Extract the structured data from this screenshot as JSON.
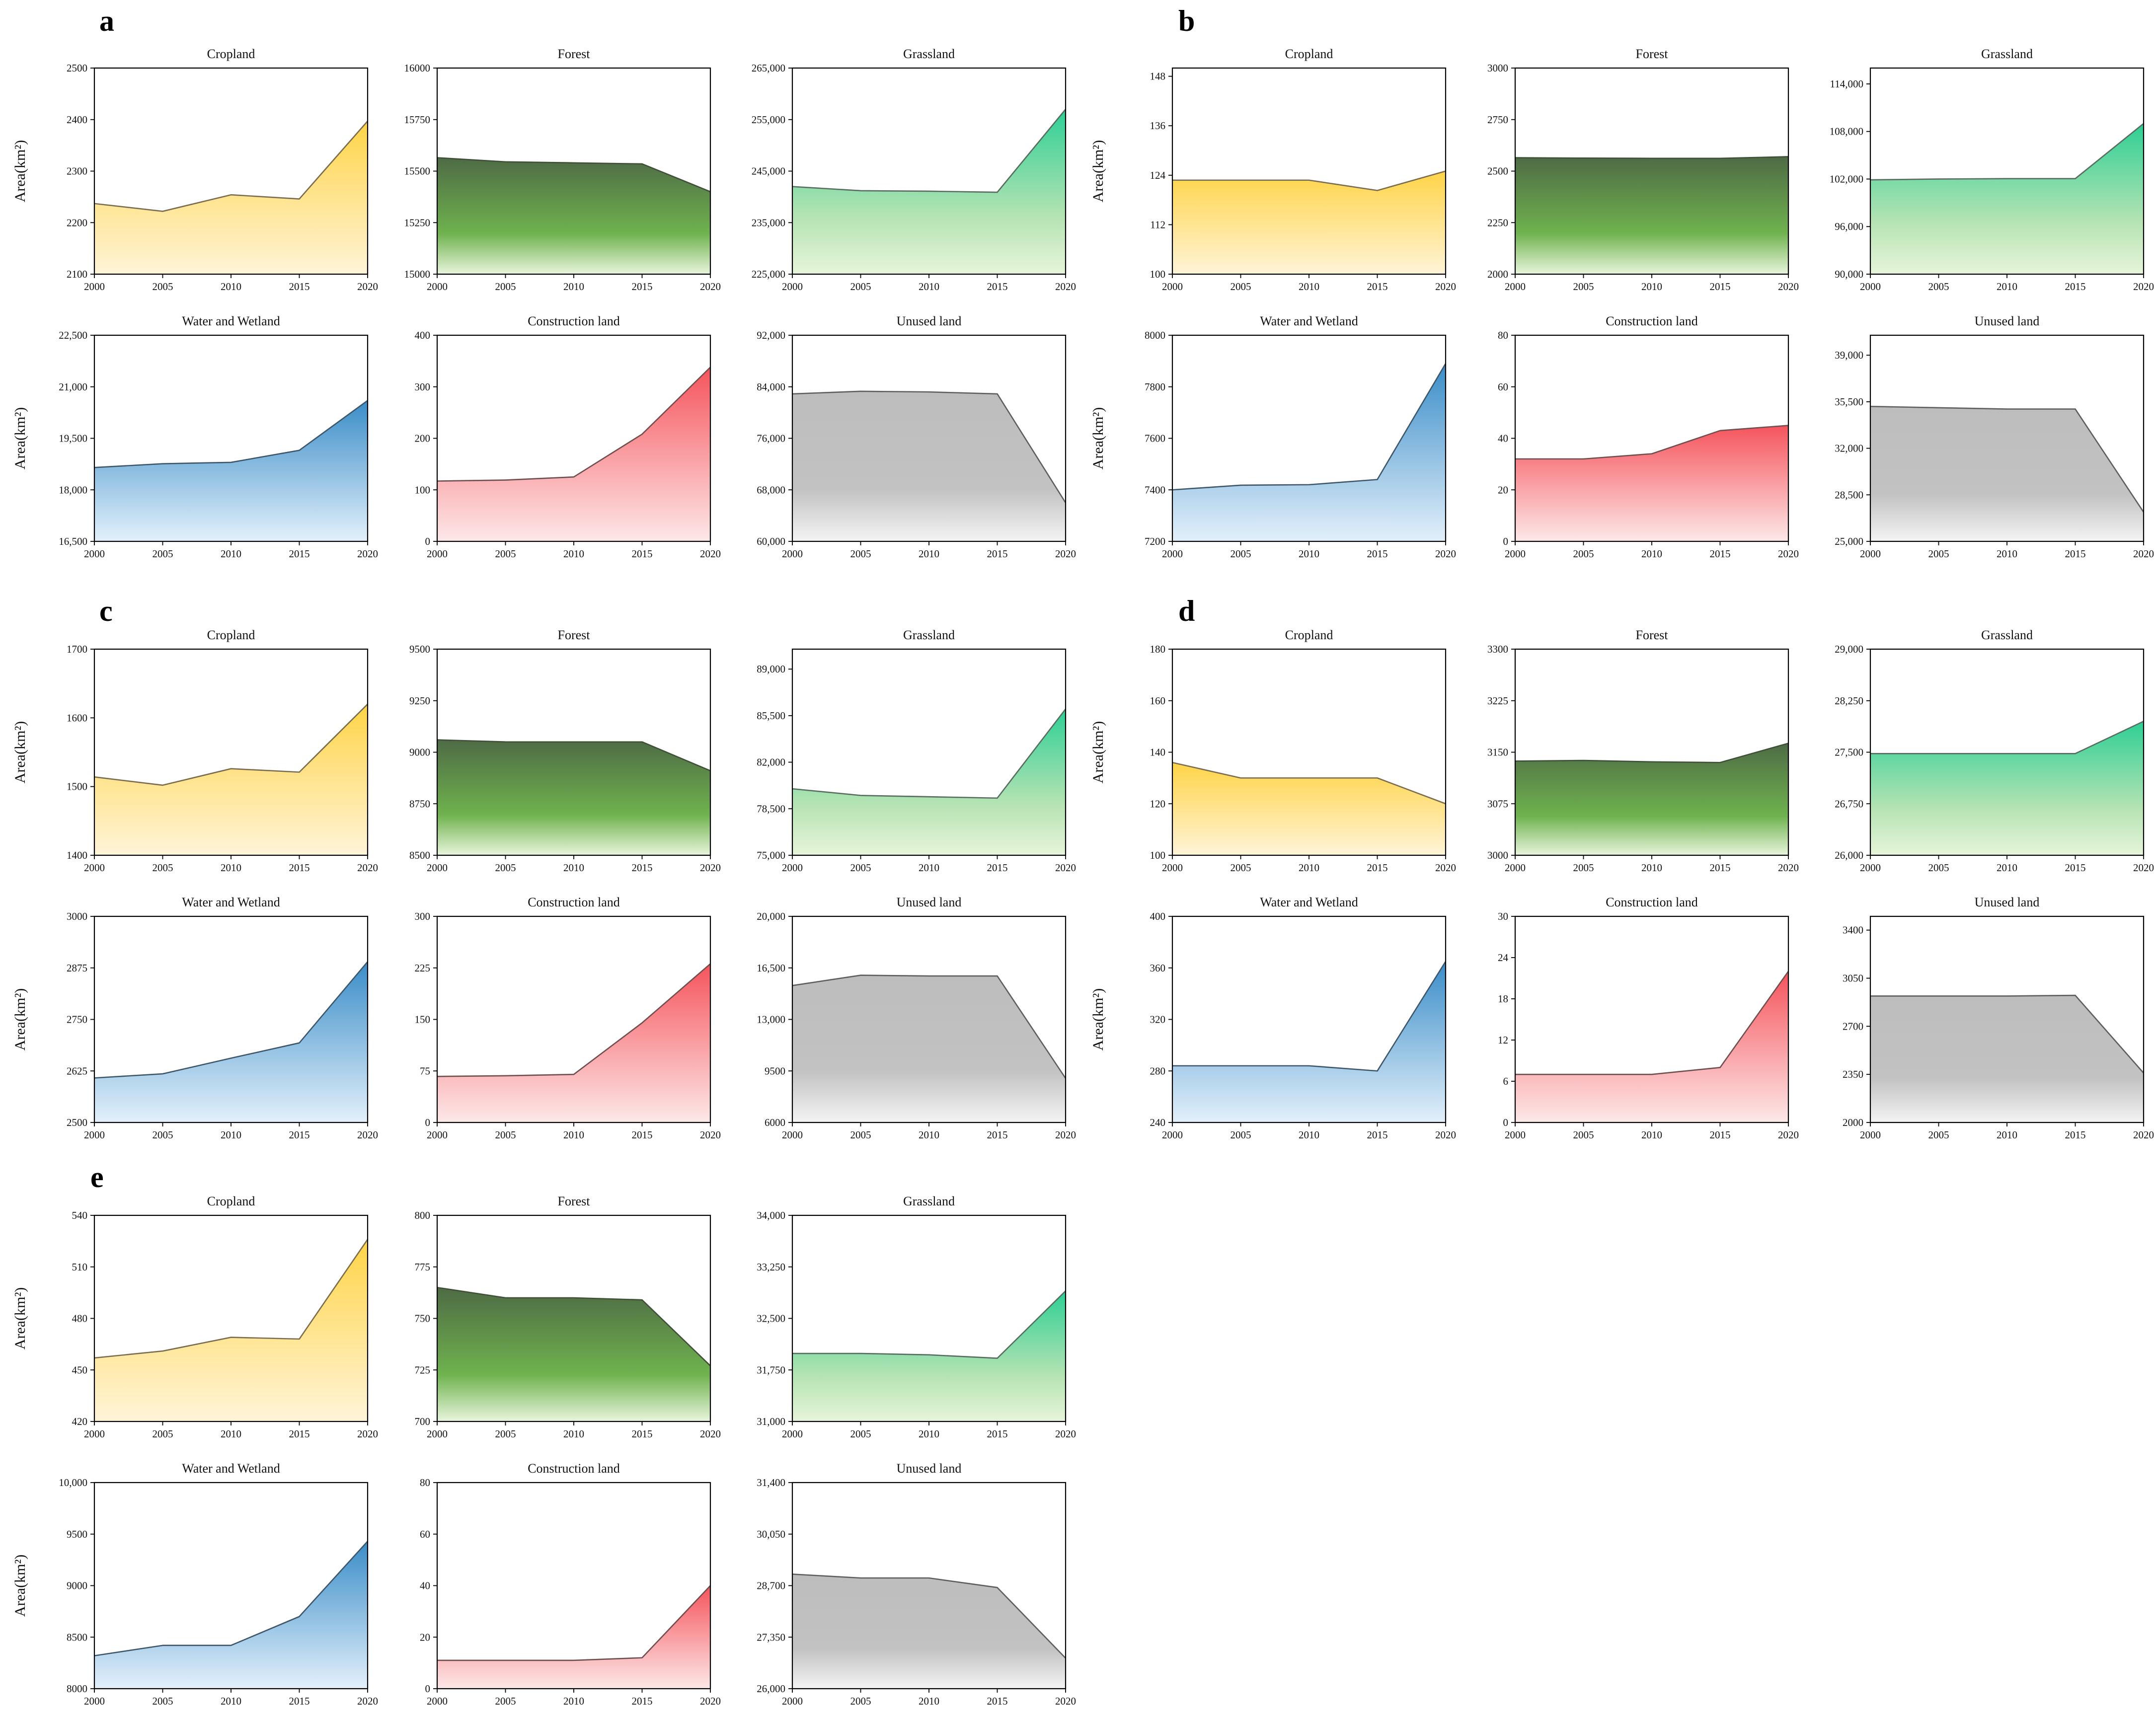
{
  "panel_letters": [
    "a",
    "b",
    "c",
    "d",
    "e"
  ],
  "colors": {
    "Cropland": {
      "top": "#ffd447",
      "bottom": "#fff4d8",
      "line": "#7a6c50"
    },
    "Forest": {
      "top": "#4e6b45",
      "bottom": "#e8f5dc",
      "mid": "#6fb24e",
      "line": "#3f4f38"
    },
    "Grassland": {
      "top": "#2ecf95",
      "bottom": "#e7f5da",
      "mid": "#b5e3b3",
      "line": "#5a6b60"
    },
    "Water and Wetland": {
      "top": "#3a8dc8",
      "bottom": "#e3f0fb",
      "line": "#3e5668"
    },
    "Construction land": {
      "top": "#f5545c",
      "bottom": "#fde8e8",
      "line": "#6e4f50"
    },
    "Unused land": {
      "top": "#bdbdbd",
      "bottom": "#f4f4f4",
      "mid": "#c2c2c2",
      "line": "#5e5e5e"
    }
  },
  "chart_data": [
    {
      "panel": "a",
      "type": "area",
      "title": "Cropland",
      "ylabel": "Area(km²)",
      "x": [
        2000,
        2005,
        2010,
        2015,
        2020
      ],
      "values": [
        2237,
        2222,
        2254,
        2246,
        2397
      ],
      "ylim": [
        2100,
        2500
      ],
      "yticks": [
        "2100",
        "2200",
        "2300",
        "2400",
        "2500"
      ]
    },
    {
      "panel": "a",
      "type": "area",
      "title": "Forest",
      "ylabel": "",
      "x": [
        2000,
        2005,
        2010,
        2015,
        2020
      ],
      "values": [
        15565,
        15545,
        15540,
        15535,
        15400
      ],
      "ylim": [
        15000,
        16000
      ],
      "yticks": [
        "15000",
        "15250",
        "15500",
        "15750",
        "16000"
      ]
    },
    {
      "panel": "a",
      "type": "area",
      "title": "Grassland",
      "ylabel": "",
      "x": [
        2000,
        2005,
        2010,
        2015,
        2020
      ],
      "values": [
        242000,
        241200,
        241100,
        240900,
        257000
      ],
      "ylim": [
        225000,
        265000
      ],
      "yticks": [
        "225,000",
        "235,000",
        "245,000",
        "255,000",
        "265,000"
      ]
    },
    {
      "panel": "a",
      "type": "area",
      "title": "Water and Wetland",
      "ylabel": "Area(km²)",
      "x": [
        2000,
        2005,
        2010,
        2015,
        2020
      ],
      "values": [
        18650,
        18760,
        18800,
        19150,
        20600
      ],
      "ylim": [
        16500,
        22500
      ],
      "yticks": [
        "16,500",
        "18,000",
        "19,500",
        "21,000",
        "22,500"
      ]
    },
    {
      "panel": "a",
      "type": "area",
      "title": "Construction land",
      "ylabel": "",
      "x": [
        2000,
        2005,
        2010,
        2015,
        2020
      ],
      "values": [
        117,
        119,
        125,
        208,
        338
      ],
      "ylim": [
        0,
        400
      ],
      "yticks": [
        "0",
        "100",
        "200",
        "300",
        "400"
      ]
    },
    {
      "panel": "a",
      "type": "area",
      "title": "Unused land",
      "ylabel": "",
      "x": [
        2000,
        2005,
        2010,
        2015,
        2020
      ],
      "values": [
        82900,
        83300,
        83200,
        82900,
        66000
      ],
      "ylim": [
        60000,
        92000
      ],
      "yticks": [
        "60,000",
        "68,000",
        "76,000",
        "84,000",
        "92,000"
      ]
    },
    {
      "panel": "b",
      "type": "area",
      "title": "Cropland",
      "ylabel": "Area(km²)",
      "x": [
        2000,
        2005,
        2010,
        2015,
        2020
      ],
      "values": [
        122.8,
        122.8,
        122.8,
        120.3,
        125
      ],
      "ylim": [
        100,
        150
      ],
      "yticks": [
        "100",
        "112",
        "124",
        "136",
        "148"
      ]
    },
    {
      "panel": "b",
      "type": "area",
      "title": "Forest",
      "ylabel": "",
      "x": [
        2000,
        2005,
        2010,
        2015,
        2020
      ],
      "values": [
        2565,
        2563,
        2562,
        2562,
        2570
      ],
      "ylim": [
        2000,
        3000
      ],
      "yticks": [
        "2000",
        "2250",
        "2500",
        "2750",
        "3000"
      ]
    },
    {
      "panel": "b",
      "type": "area",
      "title": "Grassland",
      "ylabel": "",
      "x": [
        2000,
        2005,
        2010,
        2015,
        2020
      ],
      "values": [
        101900,
        102000,
        102050,
        102050,
        109000
      ],
      "ylim": [
        90000,
        116000
      ],
      "yticks": [
        "90,000",
        "96,000",
        "102,000",
        "108,000",
        "114,000"
      ]
    },
    {
      "panel": "b",
      "type": "area",
      "title": "Water and Wetland",
      "ylabel": "Area(km²)",
      "x": [
        2000,
        2005,
        2010,
        2015,
        2020
      ],
      "values": [
        7400,
        7418,
        7420,
        7440,
        7890
      ],
      "ylim": [
        7200,
        8000
      ],
      "yticks": [
        "7200",
        "7400",
        "7600",
        "7800",
        "8000"
      ]
    },
    {
      "panel": "b",
      "type": "area",
      "title": "Construction land",
      "ylabel": "",
      "x": [
        2000,
        2005,
        2010,
        2015,
        2020
      ],
      "values": [
        32,
        32,
        34,
        43,
        45
      ],
      "ylim": [
        0,
        80
      ],
      "yticks": [
        "0",
        "20",
        "40",
        "60",
        "80"
      ]
    },
    {
      "panel": "b",
      "type": "area",
      "title": "Unused land",
      "ylabel": "",
      "x": [
        2000,
        2005,
        2010,
        2015,
        2020
      ],
      "values": [
        35150,
        35050,
        34950,
        34950,
        27200
      ],
      "ylim": [
        25000,
        40500
      ],
      "yticks": [
        "25,000",
        "28,500",
        "32,000",
        "35,500",
        "39,000"
      ]
    },
    {
      "panel": "c",
      "type": "area",
      "title": "Cropland",
      "ylabel": "Area(km²)",
      "x": [
        2000,
        2005,
        2010,
        2015,
        2020
      ],
      "values": [
        1514,
        1502,
        1526,
        1521,
        1620
      ],
      "ylim": [
        1400,
        1700
      ],
      "yticks": [
        "1400",
        "1500",
        "1600",
        "1700"
      ]
    },
    {
      "panel": "c",
      "type": "area",
      "title": "Forest",
      "ylabel": "",
      "x": [
        2000,
        2005,
        2010,
        2015,
        2020
      ],
      "values": [
        9060,
        9050,
        9050,
        9050,
        8910
      ],
      "ylim": [
        8500,
        9500
      ],
      "yticks": [
        "8500",
        "8750",
        "9000",
        "9250",
        "9500"
      ]
    },
    {
      "panel": "c",
      "type": "area",
      "title": "Grassland",
      "ylabel": "",
      "x": [
        2000,
        2005,
        2010,
        2015,
        2020
      ],
      "values": [
        80000,
        79500,
        79400,
        79300,
        86000
      ],
      "ylim": [
        75000,
        90500
      ],
      "yticks": [
        "75,000",
        "78,500",
        "82,000",
        "85,500",
        "89,000"
      ]
    },
    {
      "panel": "c",
      "type": "area",
      "title": "Water and Wetland",
      "ylabel": "Area(km²)",
      "x": [
        2000,
        2005,
        2010,
        2015,
        2020
      ],
      "values": [
        2608,
        2618,
        2656,
        2693,
        2890
      ],
      "ylim": [
        2500,
        3000
      ],
      "yticks": [
        "2500",
        "2625",
        "2750",
        "2875",
        "3000"
      ]
    },
    {
      "panel": "c",
      "type": "area",
      "title": "Construction land",
      "ylabel": "",
      "x": [
        2000,
        2005,
        2010,
        2015,
        2020
      ],
      "values": [
        67,
        68,
        70,
        145,
        231
      ],
      "ylim": [
        0,
        300
      ],
      "yticks": [
        "0",
        "75",
        "150",
        "225",
        "300"
      ]
    },
    {
      "panel": "c",
      "type": "area",
      "title": "Unused land",
      "ylabel": "",
      "x": [
        2000,
        2005,
        2010,
        2015,
        2020
      ],
      "values": [
        15300,
        16000,
        15950,
        15950,
        9000
      ],
      "ylim": [
        6000,
        20000
      ],
      "yticks": [
        "6000",
        "9500",
        "13,000",
        "16,500",
        "20,000"
      ]
    },
    {
      "panel": "d",
      "type": "area",
      "title": "Cropland",
      "ylabel": "Area(km²)",
      "x": [
        2000,
        2005,
        2010,
        2015,
        2020
      ],
      "values": [
        136,
        130,
        130,
        130,
        120
      ],
      "ylim": [
        100,
        180
      ],
      "yticks": [
        "100",
        "120",
        "140",
        "160",
        "180"
      ]
    },
    {
      "panel": "d",
      "type": "area",
      "title": "Forest",
      "ylabel": "",
      "x": [
        2000,
        2005,
        2010,
        2015,
        2020
      ],
      "values": [
        3137,
        3138,
        3136,
        3135,
        3163
      ],
      "ylim": [
        3000,
        3300
      ],
      "yticks": [
        "3000",
        "3075",
        "3150",
        "3225",
        "3300"
      ]
    },
    {
      "panel": "d",
      "type": "area",
      "title": "Grassland",
      "ylabel": "",
      "x": [
        2000,
        2005,
        2010,
        2015,
        2020
      ],
      "values": [
        27480,
        27480,
        27480,
        27480,
        27950
      ],
      "ylim": [
        26000,
        29000
      ],
      "yticks": [
        "26,000",
        "26,750",
        "27,500",
        "28,250",
        "29,000"
      ]
    },
    {
      "panel": "d",
      "type": "area",
      "title": "Water and Wetland",
      "ylabel": "Area(km²)",
      "x": [
        2000,
        2005,
        2010,
        2015,
        2020
      ],
      "values": [
        284,
        284,
        284,
        280,
        365
      ],
      "ylim": [
        240,
        400
      ],
      "yticks": [
        "240",
        "280",
        "320",
        "360",
        "400"
      ]
    },
    {
      "panel": "d",
      "type": "area",
      "title": "Construction land",
      "ylabel": "",
      "x": [
        2000,
        2005,
        2010,
        2015,
        2020
      ],
      "values": [
        7,
        7,
        7,
        8,
        22
      ],
      "ylim": [
        0,
        30
      ],
      "yticks": [
        "0",
        "6",
        "12",
        "18",
        "24",
        "30"
      ]
    },
    {
      "panel": "d",
      "type": "area",
      "title": "Unused land",
      "ylabel": "",
      "x": [
        2000,
        2005,
        2010,
        2015,
        2020
      ],
      "values": [
        2920,
        2920,
        2920,
        2925,
        2360
      ],
      "ylim": [
        2000,
        3500
      ],
      "yticks": [
        "2000",
        "2350",
        "2700",
        "3050",
        "3400"
      ]
    },
    {
      "panel": "e",
      "type": "area",
      "title": "Cropland",
      "ylabel": "Area(km²)",
      "x": [
        2000,
        2005,
        2010,
        2015,
        2020
      ],
      "values": [
        457,
        461,
        469,
        468,
        526
      ],
      "ylim": [
        420,
        540
      ],
      "yticks": [
        "420",
        "450",
        "480",
        "510",
        "540"
      ]
    },
    {
      "panel": "e",
      "type": "area",
      "title": "Forest",
      "ylabel": "",
      "x": [
        2000,
        2005,
        2010,
        2015,
        2020
      ],
      "values": [
        765,
        760,
        760,
        759,
        727
      ],
      "ylim": [
        700,
        800
      ],
      "yticks": [
        "700",
        "725",
        "750",
        "775",
        "800"
      ]
    },
    {
      "panel": "e",
      "type": "area",
      "title": "Grassland",
      "ylabel": "",
      "x": [
        2000,
        2005,
        2010,
        2015,
        2020
      ],
      "values": [
        31990,
        31990,
        31970,
        31920,
        32900
      ],
      "ylim": [
        31000,
        34000
      ],
      "yticks": [
        "31,000",
        "31,750",
        "32,500",
        "33,250",
        "34,000"
      ]
    },
    {
      "panel": "e",
      "type": "area",
      "title": "Water and Wetland",
      "ylabel": "Area(km²)",
      "x": [
        2000,
        2005,
        2010,
        2015,
        2020
      ],
      "values": [
        8320,
        8420,
        8420,
        8700,
        9430
      ],
      "ylim": [
        8000,
        10000
      ],
      "yticks": [
        "8000",
        "8500",
        "9000",
        "9500",
        "10,000"
      ]
    },
    {
      "panel": "e",
      "type": "area",
      "title": "Construction land",
      "ylabel": "",
      "x": [
        2000,
        2005,
        2010,
        2015,
        2020
      ],
      "values": [
        11,
        11,
        11,
        12,
        40
      ],
      "ylim": [
        0,
        80
      ],
      "yticks": [
        "0",
        "20",
        "40",
        "60",
        "80"
      ]
    },
    {
      "panel": "e",
      "type": "area",
      "title": "Unused land",
      "ylabel": "",
      "x": [
        2000,
        2005,
        2010,
        2015,
        2020
      ],
      "values": [
        29000,
        28900,
        28900,
        28650,
        26800
      ],
      "ylim": [
        26000,
        31400
      ],
      "yticks": [
        "26,000",
        "27,350",
        "28,700",
        "30,050",
        "31,400"
      ]
    }
  ]
}
